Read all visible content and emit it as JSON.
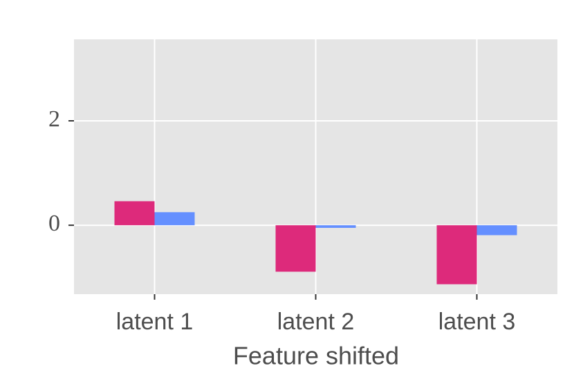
{
  "chart_data": {
    "type": "bar",
    "x_label": "Feature shifted",
    "categories": [
      "latent 1",
      "latent 2",
      "latent 3"
    ],
    "series": [
      {
        "color": "#dd2a7b",
        "values": [
          0.46,
          -0.89,
          -1.13
        ]
      },
      {
        "color": "#648fff",
        "values": [
          0.25,
          -0.05,
          -0.19
        ]
      }
    ],
    "ylim": [
      -1.32,
      3.56
    ],
    "yticks": [
      0,
      2
    ],
    "grid": true
  }
}
